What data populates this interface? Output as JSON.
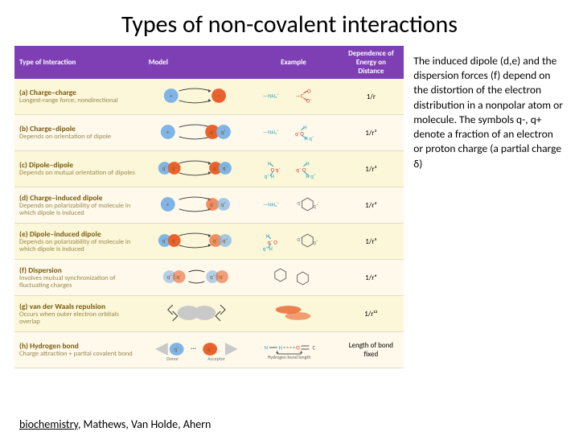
{
  "title": "Types of non-covalent interactions",
  "table": {
    "header_bg": "#7e3fb5",
    "row_odd_bg": "#fbf7d8",
    "row_even_bg": "#fef9ea",
    "headers": {
      "type": "Type of Interaction",
      "model": "Model",
      "example": "Example",
      "energy": "Dependence of Energy on Distance"
    },
    "rows": [
      {
        "title": "(a) Charge–charge",
        "desc": "Longest-range force; nondirectional",
        "energy_html": "1/r",
        "model_kind": "charge-charge",
        "example_kind": "nh3-coo"
      },
      {
        "title": "(b) Charge–dipole",
        "desc": "Depends on orientation of dipole",
        "energy_html": "1/r²",
        "model_kind": "charge-dipole",
        "example_kind": "nh3-water"
      },
      {
        "title": "(c) Dipole–dipole",
        "desc": "Depends on mutual orientation of dipoles",
        "energy_html": "1/r³",
        "model_kind": "dipole-dipole",
        "example_kind": "water-water"
      },
      {
        "title": "(d) Charge–induced dipole",
        "desc": "Depends on polarizability of molecule in which dipole is induced",
        "energy_html": "1/r⁴",
        "model_kind": "charge-induced",
        "example_kind": "nh3-ring"
      },
      {
        "title": "(e) Dipole–induced dipole",
        "desc": "Depends on polarizability of molecule in which dipole is induced",
        "energy_html": "1/r⁵",
        "model_kind": "dipole-induced",
        "example_kind": "water-ring"
      },
      {
        "title": "(f) Dispersion",
        "desc": "Involves mutual synchronization of fluctuating charges",
        "energy_html": "1/r⁶",
        "model_kind": "dispersion",
        "example_kind": "ring-ring"
      },
      {
        "title": "(g) van der Waals repulsion",
        "desc": "Occurs when outer electron orbitals overlap",
        "energy_html": "1/r¹²",
        "model_kind": "vdw",
        "example_kind": "vdw-lobes"
      },
      {
        "title": "(h) Hydrogen bond",
        "desc": "Charge attraction + partial covalent bond",
        "energy_html": "Length of bond fixed",
        "model_kind": "hbond",
        "example_kind": "hbond-ex"
      }
    ]
  },
  "sidetext": "The induced dipole (d,e) and the dispersion forces (f) depend on the distortion of the electron distribution in a nonpolar atom or molecule.  The symbols q-, q+ denote a fraction of an electron or proton charge (a partial charge δ)",
  "footer": {
    "book": "biochemistry",
    "authors": ", Mathews, Van Holde, Ahern"
  },
  "colors": {
    "pos": "#7fb4e6",
    "neg": "#e9622d",
    "qtext": "#7a5a10",
    "neutral": "#c9c9c9",
    "bond_n": "#2aa3c7",
    "bond_o": "#d4322c",
    "bond_h": "#2aa3c7",
    "hex": "#6b6b6b"
  }
}
